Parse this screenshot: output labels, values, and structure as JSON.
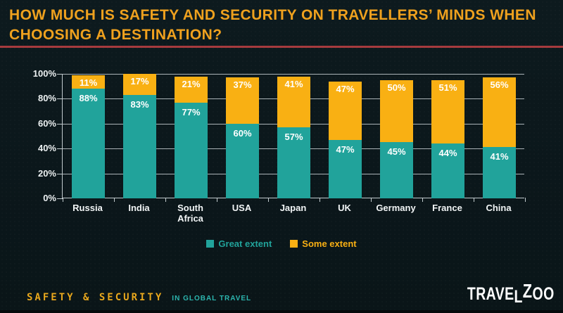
{
  "title": "HOW MUCH IS SAFETY AND SECURITY ON TRAVELLERS’ MINDS WHEN CHOOSING A DESTINATION?",
  "colors": {
    "background": "#0b171b",
    "title": "#efa11e",
    "divider_red": "#a63b3e",
    "great_extent": "#21a39b",
    "some_extent": "#f9b013",
    "axis": "#c2cbce",
    "value_label": "#ffffff"
  },
  "chart_data": {
    "type": "bar",
    "stacked": true,
    "categories": [
      "Russia",
      "India",
      "South Africa",
      "USA",
      "Japan",
      "UK",
      "Germany",
      "France",
      "China"
    ],
    "series": [
      {
        "name": "Great extent",
        "color": "#21a39b",
        "values": [
          88,
          83,
          77,
          60,
          57,
          47,
          45,
          44,
          41
        ]
      },
      {
        "name": "Some extent",
        "color": "#f9b013",
        "values": [
          11,
          17,
          21,
          37,
          41,
          47,
          50,
          51,
          56
        ]
      }
    ],
    "title": "",
    "xlabel": "",
    "ylabel": "",
    "ylim": [
      0,
      100
    ],
    "ytick_step": 20,
    "ytick_suffix": "%",
    "grid": true,
    "legend_position": "bottom",
    "value_label_suffix": "%"
  },
  "footer": {
    "brand": "SAFETY & SECURITY",
    "brand_suffix": "IN GLOBAL TRAVEL",
    "logo_parts": [
      {
        "text": "TRAVE",
        "style": "normal"
      },
      {
        "text": "L",
        "style": "low"
      },
      {
        "text": "Z",
        "style": "high"
      },
      {
        "text": "OO",
        "style": "normal"
      }
    ]
  }
}
